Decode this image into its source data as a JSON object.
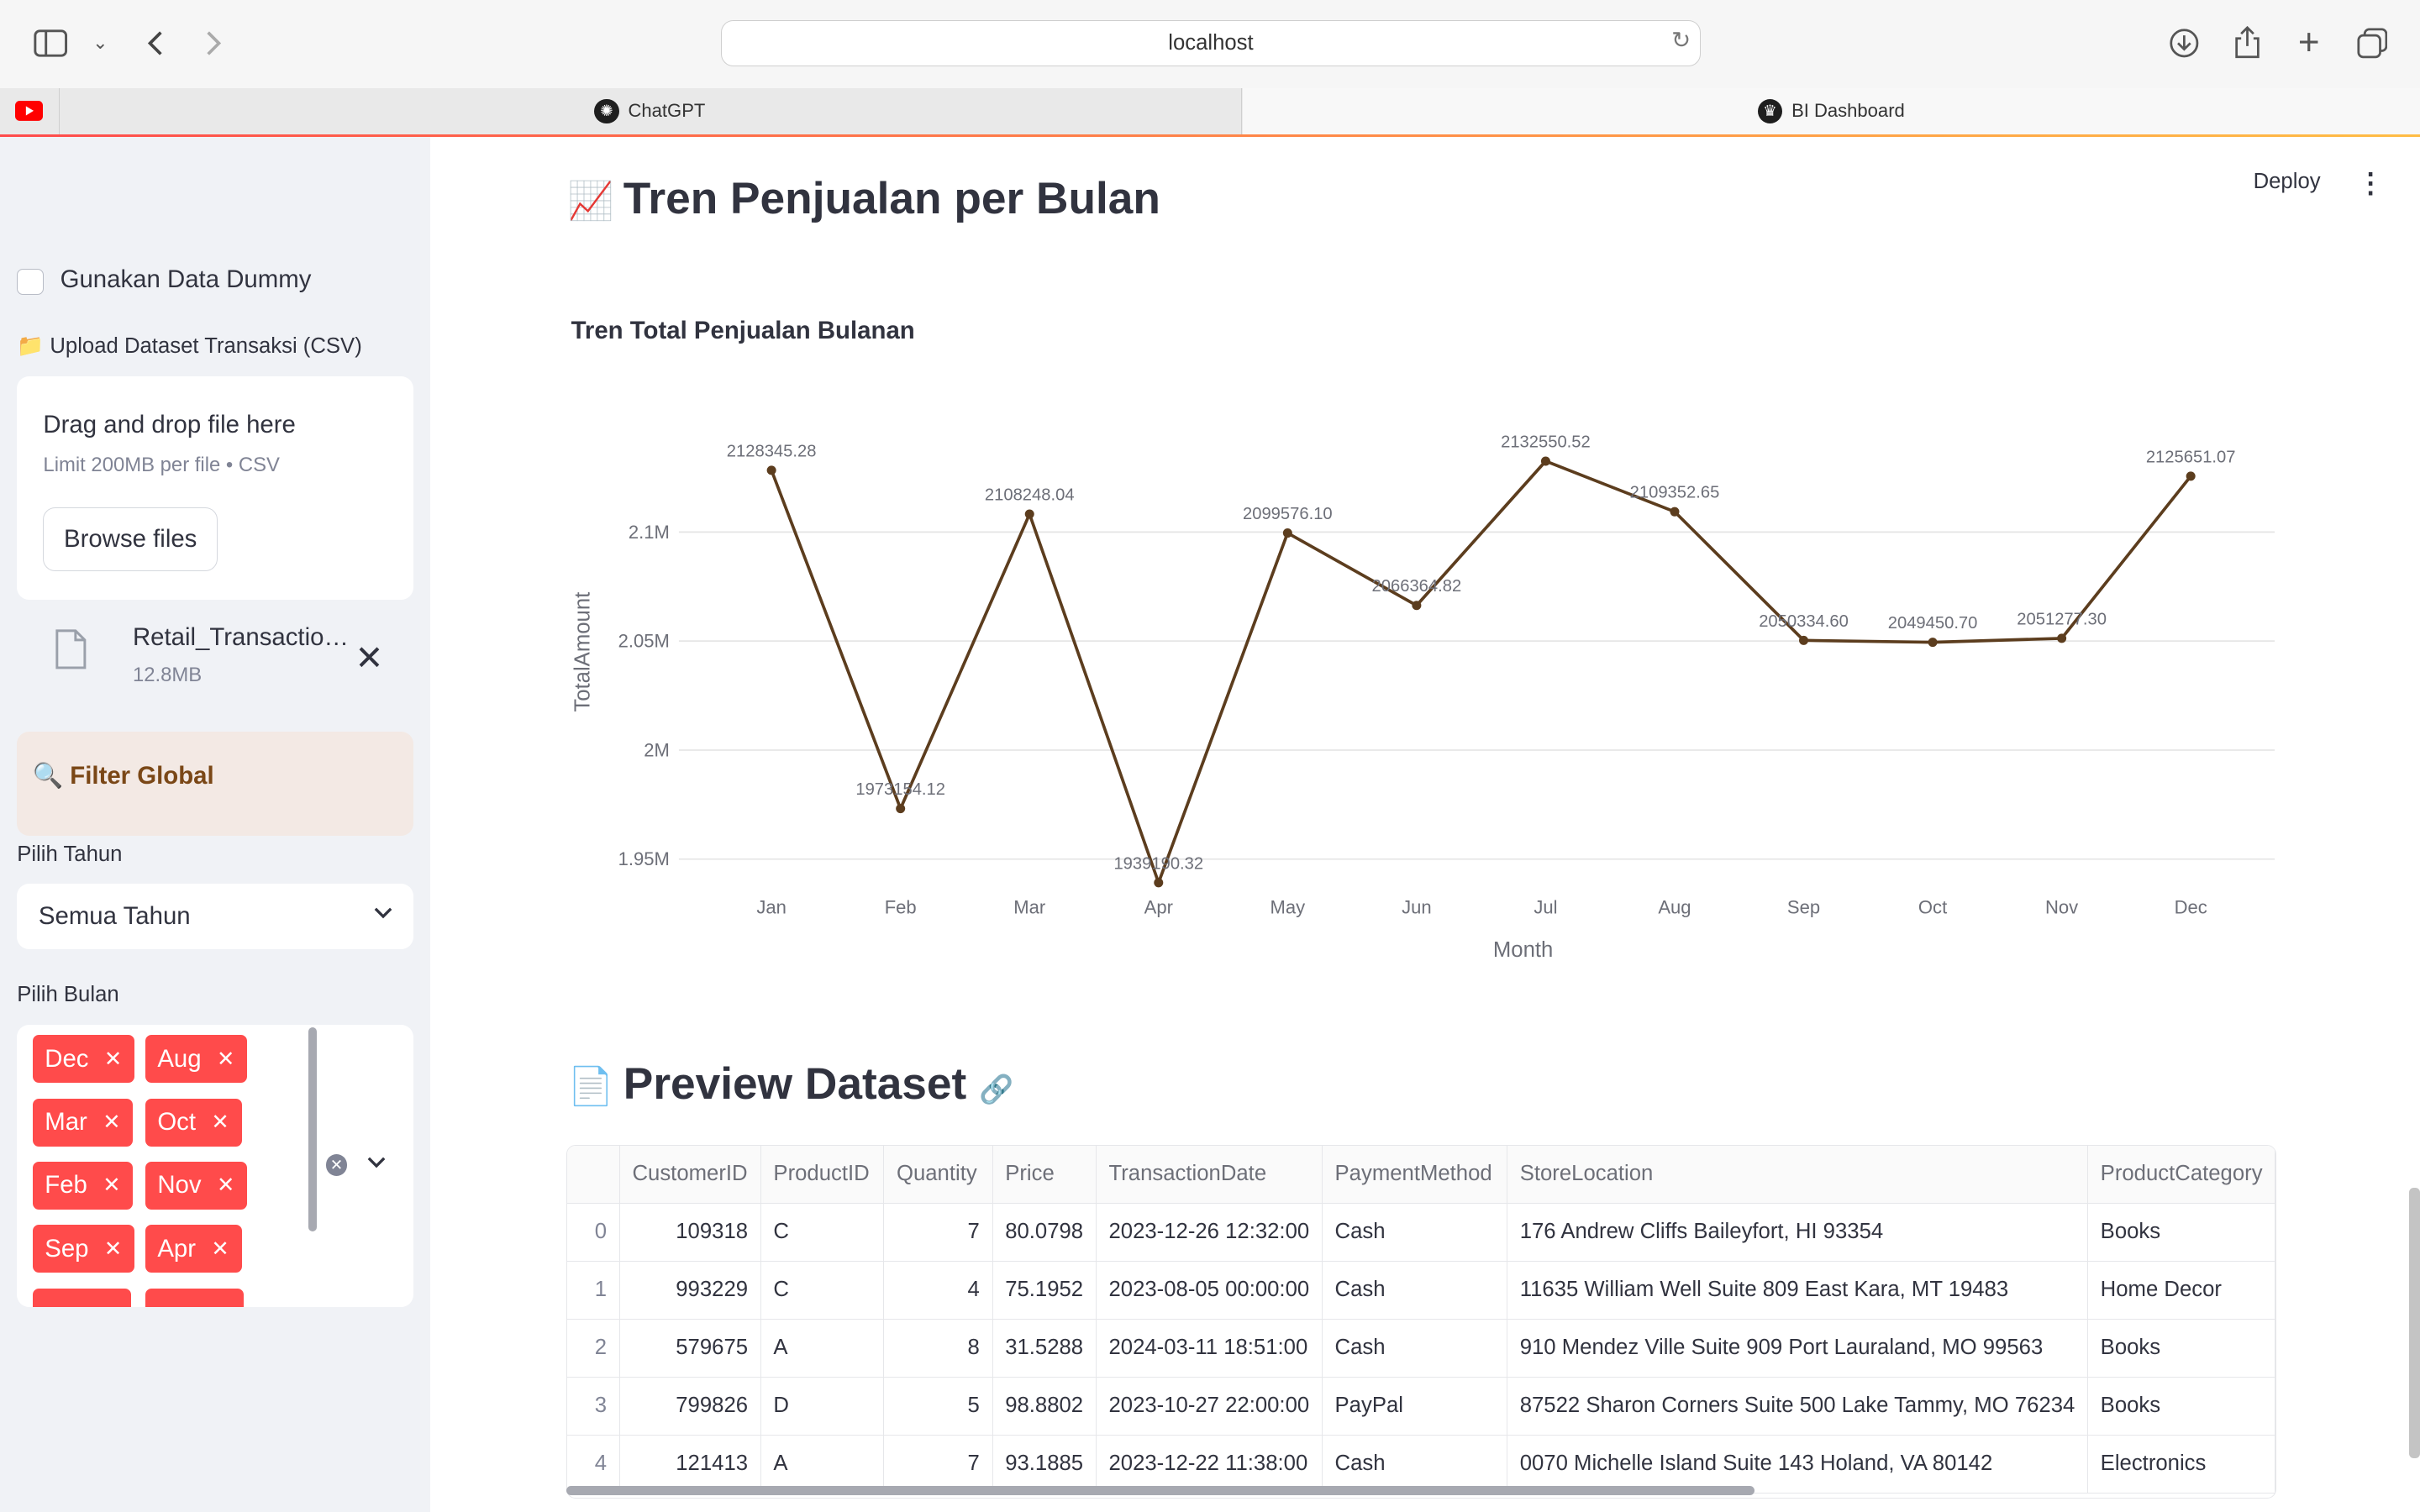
{
  "browser": {
    "url": "localhost",
    "tabs": [
      {
        "label": "ChatGPT"
      },
      {
        "label": "BI Dashboard"
      }
    ]
  },
  "sidebar": {
    "dummy_checkbox_label": "Gunakan Data Dummy",
    "upload_label": "📁 Upload Dataset Transaksi (CSV)",
    "dropzone_title": "Drag and drop file here",
    "dropzone_limit": "Limit 200MB per file • CSV",
    "browse_button": "Browse files",
    "file_name": "Retail_Transaction_Dataset.csv",
    "file_size": "12.8MB",
    "filter_title": "🔍 Filter Global",
    "year_label": "Pilih Tahun",
    "year_value": "Semua Tahun",
    "month_label": "Pilih Bulan",
    "month_pills": [
      "Dec",
      "Aug",
      "Mar",
      "Oct",
      "Feb",
      "Nov",
      "Sep",
      "Apr"
    ]
  },
  "header": {
    "deploy_label": "Deploy"
  },
  "main": {
    "trend_heading": "Tren Penjualan per Bulan",
    "trend_emoji": "📈",
    "chart_title": "Tren Total Penjualan Bulanan",
    "preview_heading": "Preview Dataset",
    "preview_emoji": "📄"
  },
  "chart_data": {
    "type": "line",
    "title": "Tren Total Penjualan Bulanan",
    "xlabel": "Month",
    "ylabel": "TotalAmount",
    "categories": [
      "Jan",
      "Feb",
      "Mar",
      "Apr",
      "May",
      "Jun",
      "Jul",
      "Aug",
      "Sep",
      "Oct",
      "Nov",
      "Dec"
    ],
    "values": [
      2128345.28,
      1973154.12,
      2108248.04,
      1939190.32,
      2099576.1,
      2066364.82,
      2132550.52,
      2109352.65,
      2050334.6,
      2049450.7,
      2051277.3,
      2125651.07
    ],
    "labels": [
      "2128345.28",
      "1973154.12",
      "2108248.04",
      "1939190.32",
      "2099576.10",
      "2066364.82",
      "2132550.52",
      "2109352.65",
      "2050334.60",
      "2049450.70",
      "2051277.30",
      "2125651.07"
    ],
    "yticks": [
      1950000,
      2000000,
      2050000,
      2100000
    ],
    "yticklabels": [
      "1.95M",
      "2M",
      "2.05M",
      "2.1M"
    ],
    "ylim": [
      1930000,
      2160000
    ],
    "grid": true,
    "color": "#5c3d1e"
  },
  "table": {
    "columns": [
      "",
      "CustomerID",
      "ProductID",
      "Quantity",
      "Price",
      "TransactionDate",
      "PaymentMethod",
      "StoreLocation",
      "ProductCategory"
    ],
    "rows": [
      [
        "0",
        "109318",
        "C",
        "7",
        "80.0798",
        "2023-12-26 12:32:00",
        "Cash",
        "176 Andrew Cliffs Baileyfort, HI 93354",
        "Books"
      ],
      [
        "1",
        "993229",
        "C",
        "4",
        "75.1952",
        "2023-08-05 00:00:00",
        "Cash",
        "11635 William Well Suite 809 East Kara, MT 19483",
        "Home Decor"
      ],
      [
        "2",
        "579675",
        "A",
        "8",
        "31.5288",
        "2024-03-11 18:51:00",
        "Cash",
        "910 Mendez Ville Suite 909 Port Lauraland, MO 99563",
        "Books"
      ],
      [
        "3",
        "799826",
        "D",
        "5",
        "98.8802",
        "2023-10-27 22:00:00",
        "PayPal",
        "87522 Sharon Corners Suite 500 Lake Tammy, MO 76234",
        "Books"
      ],
      [
        "4",
        "121413",
        "A",
        "7",
        "93.1885",
        "2023-12-22 11:38:00",
        "Cash",
        "0070 Michelle Island Suite 143 Holand, VA 80142",
        "Electronics"
      ]
    ]
  }
}
